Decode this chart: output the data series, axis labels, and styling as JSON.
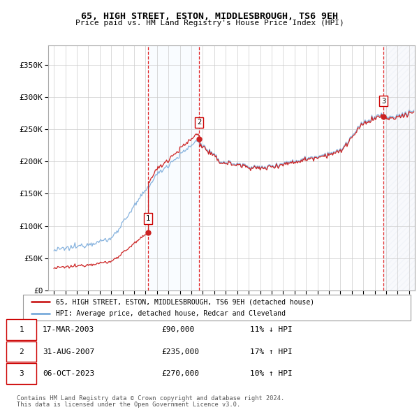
{
  "title": "65, HIGH STREET, ESTON, MIDDLESBROUGH, TS6 9EH",
  "subtitle": "Price paid vs. HM Land Registry's House Price Index (HPI)",
  "footer1": "Contains HM Land Registry data © Crown copyright and database right 2024.",
  "footer2": "This data is licensed under the Open Government Licence v3.0.",
  "legend_line1": "65, HIGH STREET, ESTON, MIDDLESBROUGH, TS6 9EH (detached house)",
  "legend_line2": "HPI: Average price, detached house, Redcar and Cleveland",
  "transactions": [
    {
      "num": 1,
      "date": "17-MAR-2003",
      "price": "£90,000",
      "hpi": "11% ↓ HPI",
      "year": 2003.21
    },
    {
      "num": 2,
      "date": "31-AUG-2007",
      "price": "£235,000",
      "hpi": "17% ↑ HPI",
      "year": 2007.67
    },
    {
      "num": 3,
      "date": "06-OCT-2023",
      "price": "£270,000",
      "hpi": "10% ↑ HPI",
      "year": 2023.76
    }
  ],
  "sale_prices": [
    90000,
    235000,
    270000
  ],
  "sale_years": [
    2003.21,
    2007.67,
    2023.76
  ],
  "hpi_color": "#7aabdb",
  "price_color": "#cc2222",
  "shade_color": "#ddeeff",
  "ylim": [
    0,
    380000
  ],
  "yticks": [
    0,
    50000,
    100000,
    150000,
    200000,
    250000,
    300000,
    350000
  ],
  "xlim": [
    1994.5,
    2026.5
  ],
  "xticks": [
    1995,
    1996,
    1997,
    1998,
    1999,
    2000,
    2001,
    2002,
    2003,
    2004,
    2005,
    2006,
    2007,
    2008,
    2009,
    2010,
    2011,
    2012,
    2013,
    2014,
    2015,
    2016,
    2017,
    2018,
    2019,
    2020,
    2021,
    2022,
    2023,
    2024,
    2025,
    2026
  ]
}
